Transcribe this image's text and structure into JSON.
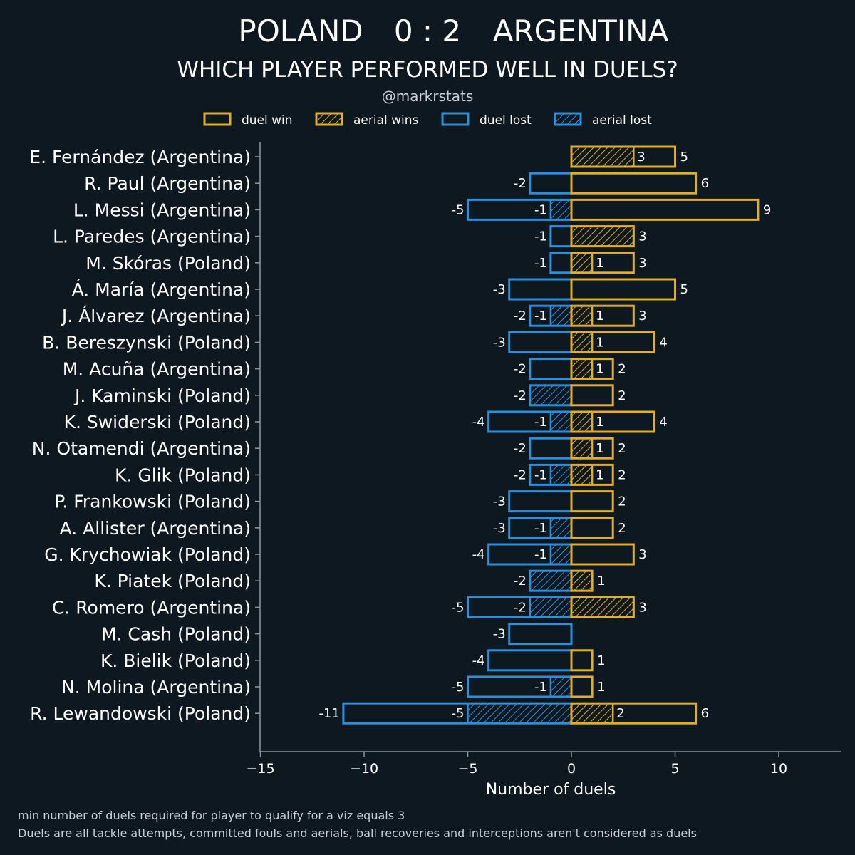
{
  "header": {
    "home_team": "POLAND",
    "score": "0 : 2",
    "away_team": "ARGENTINA",
    "subtitle": "WHICH PLAYER PERFORMED WELL IN DUELS?",
    "credit": "@markrstats"
  },
  "colors": {
    "background": "#0e1821",
    "win": "#e0ad2c",
    "lost": "#2c8fdc",
    "axis": "#8d979f"
  },
  "legend": {
    "items": [
      {
        "label": "duel win",
        "color": "win",
        "hatched": false
      },
      {
        "label": "aerial wins",
        "color": "win",
        "hatched": true
      },
      {
        "label": "duel lost",
        "color": "lost",
        "hatched": false
      },
      {
        "label": "aerial lost",
        "color": "lost",
        "hatched": true
      }
    ]
  },
  "chart_data": {
    "type": "bar",
    "orientation": "horizontal",
    "xlabel": "Number of duels",
    "xlim": [
      -15,
      13
    ],
    "xticks": [
      -15,
      -10,
      -5,
      0,
      5,
      10
    ],
    "xtick_labels": [
      "−15",
      "−10",
      "−5",
      "0",
      "5",
      "10"
    ],
    "players": [
      {
        "name": "E. Fernández (Argentina)",
        "duel_win": 5,
        "aerial_win": 3,
        "duel_lost": 0,
        "aerial_lost": 0
      },
      {
        "name": "R. Paul (Argentina)",
        "duel_win": 6,
        "aerial_win": 0,
        "duel_lost": -2,
        "aerial_lost": 0
      },
      {
        "name": "L. Messi (Argentina)",
        "duel_win": 9,
        "aerial_win": 0,
        "duel_lost": -5,
        "aerial_lost": -1
      },
      {
        "name": "L. Paredes (Argentina)",
        "duel_win": 3,
        "aerial_win": 3,
        "duel_lost": -1,
        "aerial_lost": 0
      },
      {
        "name": "M. Skóras (Poland)",
        "duel_win": 3,
        "aerial_win": 1,
        "duel_lost": -1,
        "aerial_lost": 0
      },
      {
        "name": "Á. María (Argentina)",
        "duel_win": 5,
        "aerial_win": 0,
        "duel_lost": -3,
        "aerial_lost": 0
      },
      {
        "name": "J. Álvarez (Argentina)",
        "duel_win": 3,
        "aerial_win": 1,
        "duel_lost": -2,
        "aerial_lost": -1
      },
      {
        "name": "B. Bereszynski (Poland)",
        "duel_win": 4,
        "aerial_win": 1,
        "duel_lost": -3,
        "aerial_lost": 0
      },
      {
        "name": "M. Acuña (Argentina)",
        "duel_win": 2,
        "aerial_win": 1,
        "duel_lost": -2,
        "aerial_lost": 0
      },
      {
        "name": "J. Kaminski (Poland)",
        "duel_win": 2,
        "aerial_win": 0,
        "duel_lost": -2,
        "aerial_lost": -2
      },
      {
        "name": "K. Swiderski (Poland)",
        "duel_win": 4,
        "aerial_win": 1,
        "duel_lost": -4,
        "aerial_lost": -1
      },
      {
        "name": "N. Otamendi (Argentina)",
        "duel_win": 2,
        "aerial_win": 1,
        "duel_lost": -2,
        "aerial_lost": 0
      },
      {
        "name": "K. Glik (Poland)",
        "duel_win": 2,
        "aerial_win": 1,
        "duel_lost": -2,
        "aerial_lost": -1
      },
      {
        "name": "P. Frankowski (Poland)",
        "duel_win": 2,
        "aerial_win": 0,
        "duel_lost": -3,
        "aerial_lost": 0
      },
      {
        "name": "A. Allister (Argentina)",
        "duel_win": 2,
        "aerial_win": 0,
        "duel_lost": -3,
        "aerial_lost": -1
      },
      {
        "name": "G. Krychowiak (Poland)",
        "duel_win": 3,
        "aerial_win": 0,
        "duel_lost": -4,
        "aerial_lost": -1
      },
      {
        "name": "K. Piatek (Poland)",
        "duel_win": 1,
        "aerial_win": 1,
        "duel_lost": -2,
        "aerial_lost": -2
      },
      {
        "name": "C. Romero (Argentina)",
        "duel_win": 3,
        "aerial_win": 3,
        "duel_lost": -5,
        "aerial_lost": -2
      },
      {
        "name": "M. Cash (Poland)",
        "duel_win": 0,
        "aerial_win": 0,
        "duel_lost": -3,
        "aerial_lost": 0
      },
      {
        "name": "K. Bielik (Poland)",
        "duel_win": 1,
        "aerial_win": 0,
        "duel_lost": -4,
        "aerial_lost": 0
      },
      {
        "name": "N. Molina (Argentina)",
        "duel_win": 1,
        "aerial_win": 0,
        "duel_lost": -5,
        "aerial_lost": -1
      },
      {
        "name": "R. Lewandowski (Poland)",
        "duel_win": 6,
        "aerial_win": 2,
        "duel_lost": -11,
        "aerial_lost": -5
      }
    ]
  },
  "footnotes": [
    "min number of duels required for player to qualify for a viz equals 3",
    "Duels are all tackle attempts, committed fouls and aerials, ball recoveries and interceptions aren't considered as duels"
  ]
}
